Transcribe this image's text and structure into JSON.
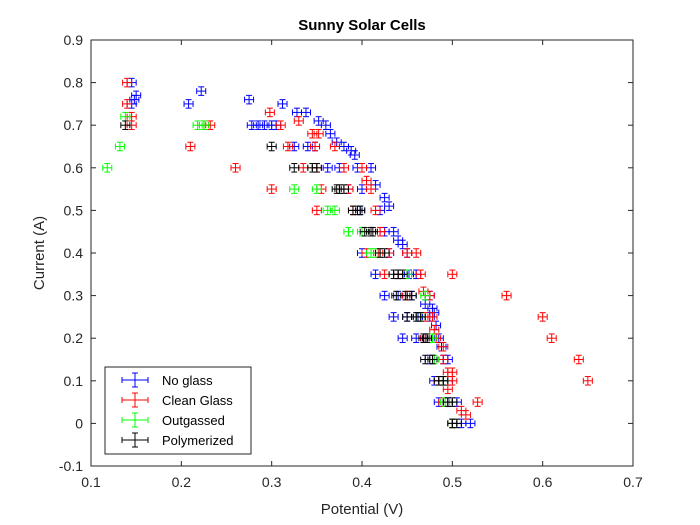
{
  "chart_data": {
    "type": "scatter",
    "title": "Sunny Solar Cells",
    "xlabel": "Potential (V)",
    "ylabel": "Current (A)",
    "xlim": [
      0.1,
      0.7
    ],
    "ylim": [
      -0.1,
      0.9
    ],
    "xticks": [
      "0.1",
      "0.2",
      "0.3",
      "0.4",
      "0.5",
      "0.6",
      "0.7"
    ],
    "yticks": [
      "-0.1",
      "0",
      "0.1",
      "0.2",
      "0.3",
      "0.4",
      "0.5",
      "0.6",
      "0.7",
      "0.8",
      "0.9"
    ],
    "grid": false,
    "legend_position": "bottom-left",
    "error_bars": {
      "x": 0.005,
      "y": 0.01
    },
    "series": [
      {
        "name": "No glass",
        "color": "#0000ff",
        "points": [
          [
            0.145,
            0.8
          ],
          [
            0.15,
            0.77
          ],
          [
            0.148,
            0.76
          ],
          [
            0.145,
            0.75
          ],
          [
            0.208,
            0.75
          ],
          [
            0.222,
            0.78
          ],
          [
            0.275,
            0.76
          ],
          [
            0.312,
            0.75
          ],
          [
            0.278,
            0.7
          ],
          [
            0.285,
            0.7
          ],
          [
            0.292,
            0.7
          ],
          [
            0.3,
            0.7
          ],
          [
            0.305,
            0.7
          ],
          [
            0.328,
            0.73
          ],
          [
            0.338,
            0.73
          ],
          [
            0.352,
            0.71
          ],
          [
            0.36,
            0.7
          ],
          [
            0.365,
            0.68
          ],
          [
            0.372,
            0.66
          ],
          [
            0.38,
            0.65
          ],
          [
            0.388,
            0.64
          ],
          [
            0.392,
            0.63
          ],
          [
            0.325,
            0.65
          ],
          [
            0.34,
            0.65
          ],
          [
            0.348,
            0.65
          ],
          [
            0.362,
            0.6
          ],
          [
            0.375,
            0.6
          ],
          [
            0.395,
            0.6
          ],
          [
            0.41,
            0.6
          ],
          [
            0.385,
            0.55
          ],
          [
            0.4,
            0.55
          ],
          [
            0.415,
            0.56
          ],
          [
            0.425,
            0.53
          ],
          [
            0.398,
            0.5
          ],
          [
            0.42,
            0.5
          ],
          [
            0.43,
            0.51
          ],
          [
            0.425,
            0.45
          ],
          [
            0.435,
            0.45
          ],
          [
            0.44,
            0.43
          ],
          [
            0.445,
            0.42
          ],
          [
            0.4,
            0.4
          ],
          [
            0.43,
            0.4
          ],
          [
            0.45,
            0.4
          ],
          [
            0.415,
            0.35
          ],
          [
            0.44,
            0.35
          ],
          [
            0.452,
            0.35
          ],
          [
            0.46,
            0.35
          ],
          [
            0.425,
            0.3
          ],
          [
            0.44,
            0.3
          ],
          [
            0.455,
            0.3
          ],
          [
            0.475,
            0.3
          ],
          [
            0.47,
            0.28
          ],
          [
            0.478,
            0.27
          ],
          [
            0.48,
            0.26
          ],
          [
            0.435,
            0.25
          ],
          [
            0.45,
            0.25
          ],
          [
            0.462,
            0.25
          ],
          [
            0.475,
            0.25
          ],
          [
            0.482,
            0.23
          ],
          [
            0.445,
            0.2
          ],
          [
            0.46,
            0.2
          ],
          [
            0.47,
            0.2
          ],
          [
            0.485,
            0.2
          ],
          [
            0.488,
            0.18
          ],
          [
            0.475,
            0.15
          ],
          [
            0.49,
            0.15
          ],
          [
            0.495,
            0.15
          ],
          [
            0.48,
            0.1
          ],
          [
            0.49,
            0.1
          ],
          [
            0.495,
            0.1
          ],
          [
            0.485,
            0.05
          ],
          [
            0.495,
            0.05
          ],
          [
            0.505,
            0.05
          ],
          [
            0.5,
            0.0
          ],
          [
            0.51,
            0.0
          ],
          [
            0.52,
            0.0
          ]
        ]
      },
      {
        "name": "Clean Glass",
        "color": "#ff0000",
        "points": [
          [
            0.14,
            0.8
          ],
          [
            0.14,
            0.75
          ],
          [
            0.145,
            0.72
          ],
          [
            0.145,
            0.7
          ],
          [
            0.21,
            0.65
          ],
          [
            0.225,
            0.7
          ],
          [
            0.232,
            0.7
          ],
          [
            0.26,
            0.6
          ],
          [
            0.3,
            0.55
          ],
          [
            0.298,
            0.73
          ],
          [
            0.31,
            0.7
          ],
          [
            0.318,
            0.65
          ],
          [
            0.33,
            0.71
          ],
          [
            0.335,
            0.6
          ],
          [
            0.345,
            0.68
          ],
          [
            0.348,
            0.65
          ],
          [
            0.35,
            0.6
          ],
          [
            0.352,
            0.68
          ],
          [
            0.355,
            0.55
          ],
          [
            0.35,
            0.5
          ],
          [
            0.37,
            0.65
          ],
          [
            0.38,
            0.6
          ],
          [
            0.385,
            0.55
          ],
          [
            0.39,
            0.5
          ],
          [
            0.4,
            0.6
          ],
          [
            0.405,
            0.57
          ],
          [
            0.41,
            0.55
          ],
          [
            0.415,
            0.5
          ],
          [
            0.42,
            0.45
          ],
          [
            0.405,
            0.4
          ],
          [
            0.418,
            0.4
          ],
          [
            0.425,
            0.35
          ],
          [
            0.43,
            0.4
          ],
          [
            0.44,
            0.35
          ],
          [
            0.45,
            0.4
          ],
          [
            0.46,
            0.4
          ],
          [
            0.465,
            0.35
          ],
          [
            0.45,
            0.3
          ],
          [
            0.468,
            0.31
          ],
          [
            0.475,
            0.3
          ],
          [
            0.47,
            0.25
          ],
          [
            0.478,
            0.25
          ],
          [
            0.48,
            0.22
          ],
          [
            0.47,
            0.2
          ],
          [
            0.482,
            0.2
          ],
          [
            0.49,
            0.18
          ],
          [
            0.478,
            0.15
          ],
          [
            0.49,
            0.15
          ],
          [
            0.495,
            0.12
          ],
          [
            0.5,
            0.12
          ],
          [
            0.485,
            0.1
          ],
          [
            0.5,
            0.1
          ],
          [
            0.495,
            0.08
          ],
          [
            0.49,
            0.05
          ],
          [
            0.51,
            0.03
          ],
          [
            0.515,
            0.02
          ],
          [
            0.5,
            0.0
          ],
          [
            0.528,
            0.05
          ],
          [
            0.5,
            0.35
          ],
          [
            0.56,
            0.3
          ],
          [
            0.6,
            0.25
          ],
          [
            0.61,
            0.2
          ],
          [
            0.64,
            0.15
          ],
          [
            0.65,
            0.1
          ]
        ]
      },
      {
        "name": "Outgassed",
        "color": "#00ff00",
        "points": [
          [
            0.118,
            0.6
          ],
          [
            0.132,
            0.65
          ],
          [
            0.138,
            0.72
          ],
          [
            0.218,
            0.7
          ],
          [
            0.225,
            0.7
          ],
          [
            0.325,
            0.55
          ],
          [
            0.35,
            0.55
          ],
          [
            0.362,
            0.5
          ],
          [
            0.37,
            0.5
          ],
          [
            0.385,
            0.45
          ],
          [
            0.4,
            0.45
          ],
          [
            0.41,
            0.4
          ],
          [
            0.415,
            0.4
          ],
          [
            0.45,
            0.35
          ],
          [
            0.47,
            0.3
          ],
          [
            0.465,
            0.25
          ],
          [
            0.478,
            0.2
          ],
          [
            0.48,
            0.15
          ],
          [
            0.49,
            0.1
          ],
          [
            0.492,
            0.05
          ],
          [
            0.5,
            0.0
          ]
        ]
      },
      {
        "name": "Polymerized",
        "color": "#000000",
        "points": [
          [
            0.138,
            0.7
          ],
          [
            0.3,
            0.65
          ],
          [
            0.325,
            0.6
          ],
          [
            0.345,
            0.6
          ],
          [
            0.35,
            0.6
          ],
          [
            0.372,
            0.55
          ],
          [
            0.375,
            0.55
          ],
          [
            0.38,
            0.55
          ],
          [
            0.39,
            0.5
          ],
          [
            0.395,
            0.5
          ],
          [
            0.398,
            0.5
          ],
          [
            0.403,
            0.45
          ],
          [
            0.41,
            0.45
          ],
          [
            0.412,
            0.45
          ],
          [
            0.42,
            0.4
          ],
          [
            0.425,
            0.4
          ],
          [
            0.435,
            0.35
          ],
          [
            0.44,
            0.35
          ],
          [
            0.445,
            0.35
          ],
          [
            0.438,
            0.3
          ],
          [
            0.448,
            0.3
          ],
          [
            0.455,
            0.3
          ],
          [
            0.45,
            0.25
          ],
          [
            0.46,
            0.25
          ],
          [
            0.465,
            0.25
          ],
          [
            0.468,
            0.2
          ],
          [
            0.472,
            0.2
          ],
          [
            0.47,
            0.15
          ],
          [
            0.478,
            0.15
          ],
          [
            0.485,
            0.1
          ],
          [
            0.49,
            0.1
          ],
          [
            0.495,
            0.05
          ],
          [
            0.5,
            0.05
          ],
          [
            0.5,
            0.0
          ],
          [
            0.505,
            0.0
          ]
        ]
      }
    ]
  }
}
